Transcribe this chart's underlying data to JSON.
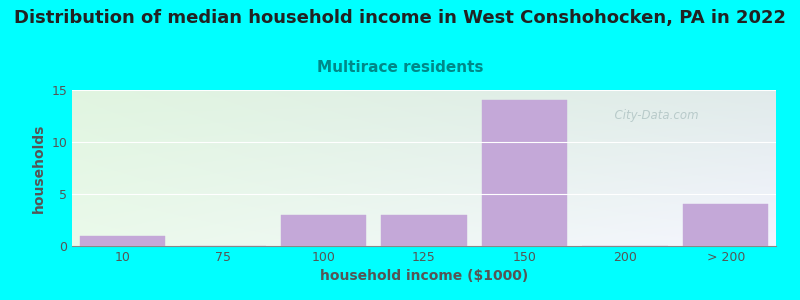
{
  "title": "Distribution of median household income in West Conshohocken, PA in 2022",
  "subtitle": "Multirace residents",
  "xlabel": "household income ($1000)",
  "ylabel": "households",
  "title_fontsize": 13,
  "subtitle_fontsize": 11,
  "subtitle_color": "#008888",
  "bar_labels": [
    "10",
    "75",
    "100",
    "125",
    "150",
    "200",
    "> 200"
  ],
  "bar_values": [
    1,
    0,
    3,
    3,
    14,
    0,
    4
  ],
  "bar_color": "#C4A8D8",
  "bar_edgecolor": "#C4A8D8",
  "background_color": "#00FFFF",
  "ylim": [
    0,
    15
  ],
  "yticks": [
    0,
    5,
    10,
    15
  ],
  "watermark": "  City-Data.com",
  "bar_width": 0.85,
  "gradient_topleft": [
    0.88,
    0.96,
    0.88
  ],
  "gradient_topright": [
    0.88,
    0.92,
    0.92
  ],
  "gradient_bottomleft": [
    0.92,
    0.98,
    0.92
  ],
  "gradient_bottomright": [
    0.96,
    0.96,
    1.0
  ]
}
